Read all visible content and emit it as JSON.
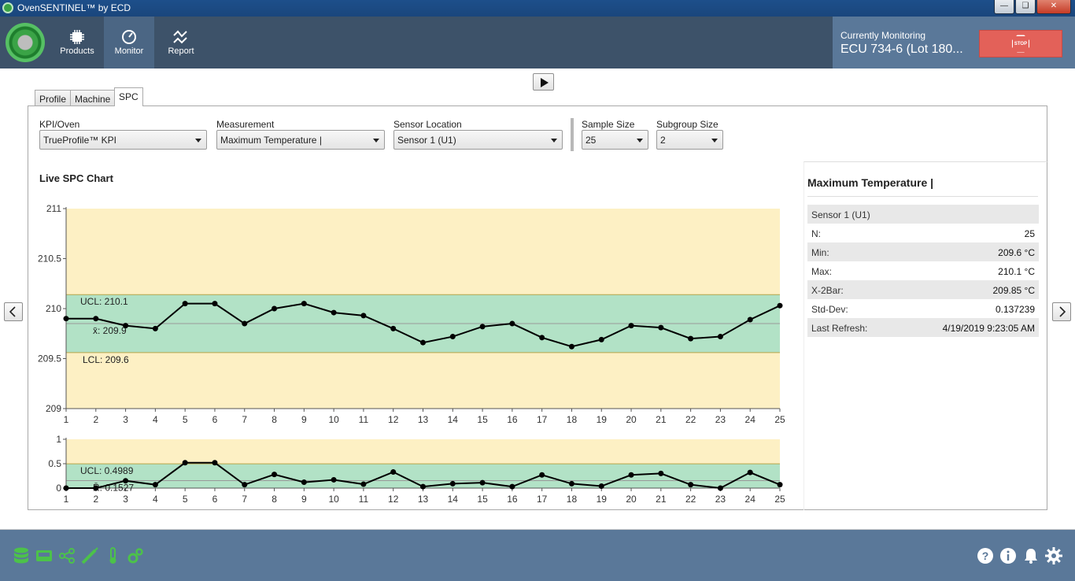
{
  "window": {
    "title": "OvenSENTINEL™ by ECD"
  },
  "nav": {
    "items": [
      {
        "label": "Products"
      },
      {
        "label": "Monitor"
      },
      {
        "label": "Report"
      }
    ]
  },
  "monitoring": {
    "label": "Currently Monitoring",
    "value": "ECU 734-6 (Lot 180...",
    "stop_label": "STOP"
  },
  "tabs": [
    "Profile",
    "Machine",
    "SPC"
  ],
  "filters": {
    "kpi": {
      "label": "KPI/Oven",
      "value": "TrueProfile™ KPI"
    },
    "measurement": {
      "label": "Measurement",
      "value": "Maximum Temperature |"
    },
    "sensor": {
      "label": "Sensor Location",
      "value": "Sensor 1 (U1)"
    },
    "sample": {
      "label": "Sample Size",
      "value": "25"
    },
    "subgroup": {
      "label": "Subgroup Size",
      "value": "2"
    }
  },
  "chart_title": "Live SPC Chart",
  "stats": {
    "title": "Maximum Temperature |",
    "rows": [
      {
        "k": "Sensor 1 (U1)",
        "v": ""
      },
      {
        "k": "N:",
        "v": "25"
      },
      {
        "k": "Min:",
        "v": "209.6 °C"
      },
      {
        "k": "Max:",
        "v": "210.1 °C"
      },
      {
        "k": "X-2Bar:",
        "v": "209.85 °C"
      },
      {
        "k": "Std-Dev:",
        "v": "0.137239"
      },
      {
        "k": "Last Refresh:",
        "v": "4/19/2019 9:23:05 AM"
      }
    ]
  },
  "colors": {
    "in_control": "#b2e2c6",
    "out_control": "#fdf0c4",
    "line": "#000000"
  },
  "chart_data": [
    {
      "type": "line",
      "name": "xbar",
      "x": [
        1,
        2,
        3,
        4,
        5,
        6,
        7,
        8,
        9,
        10,
        11,
        12,
        13,
        14,
        15,
        16,
        17,
        18,
        19,
        20,
        21,
        22,
        23,
        24,
        25
      ],
      "values": [
        209.9,
        209.9,
        209.83,
        209.8,
        210.05,
        210.05,
        209.85,
        210.0,
        210.05,
        209.96,
        209.93,
        209.8,
        209.66,
        209.72,
        209.82,
        209.85,
        209.71,
        209.62,
        209.69,
        209.83,
        209.81,
        209.7,
        209.72,
        209.89,
        210.03
      ],
      "ylim": [
        209,
        211
      ],
      "yticks": [
        "209",
        "209.5",
        "210",
        "210.5",
        "211"
      ],
      "ucl": 210.14,
      "lcl": 209.56,
      "center": 209.85,
      "ucl_label": "UCL: 210.1",
      "lcl_label": "LCL: 209.6",
      "center_label": "x̄: 209.9"
    },
    {
      "type": "line",
      "name": "range",
      "x": [
        1,
        2,
        3,
        4,
        5,
        6,
        7,
        8,
        9,
        10,
        11,
        12,
        13,
        14,
        15,
        16,
        17,
        18,
        19,
        20,
        21,
        22,
        23,
        24,
        25
      ],
      "values": [
        0,
        0,
        0.15,
        0.07,
        0.52,
        0.52,
        0.07,
        0.28,
        0.12,
        0.17,
        0.08,
        0.33,
        0.03,
        0.09,
        0.11,
        0.03,
        0.27,
        0.09,
        0.04,
        0.27,
        0.3,
        0.07,
        0,
        0.32,
        0.07
      ],
      "ylim": [
        0,
        1
      ],
      "yticks": [
        "0",
        "0.5",
        "1"
      ],
      "ucl": 0.4989,
      "center": 0.1527,
      "ucl_label": "UCL: 0.4989",
      "center_label": "R̄: 0.1527"
    }
  ]
}
